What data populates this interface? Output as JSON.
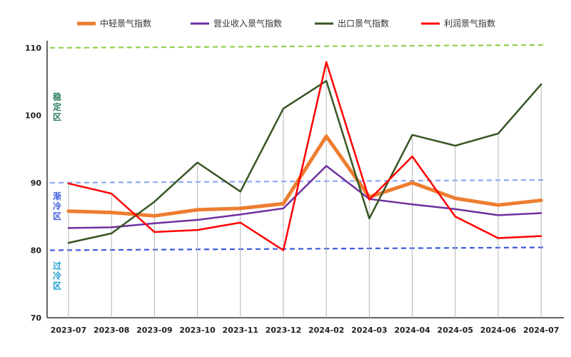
{
  "chart_data": {
    "type": "line",
    "categories": [
      "2023-07",
      "2023-08",
      "2023-09",
      "2023-10",
      "2023-11",
      "2023-12",
      "2024-02",
      "2024-03",
      "2024-04",
      "2024-05",
      "2024-06",
      "2024-07"
    ],
    "ylim": [
      70,
      110
    ],
    "yticks": [
      70,
      80,
      90,
      100,
      110
    ],
    "grid": false,
    "legend_position": "top",
    "series": [
      {
        "name": "中轻景气指数",
        "color": "#ED7D31",
        "width": 5,
        "values": [
          85.8,
          85.6,
          85.1,
          86.0,
          86.2,
          86.9,
          96.9,
          87.9,
          90.0,
          87.7,
          86.7,
          87.4
        ]
      },
      {
        "name": "营业收入景气指数",
        "color": "#7030A0",
        "width": 2.5,
        "values": [
          83.3,
          83.4,
          84.0,
          84.5,
          85.3,
          86.2,
          92.5,
          87.6,
          86.8,
          86.1,
          85.2,
          85.5
        ]
      },
      {
        "name": "出口景气指数",
        "color": "#375623",
        "width": 2.5,
        "values": [
          81.1,
          82.5,
          87.2,
          93.0,
          88.7,
          101.0,
          105.1,
          84.7,
          97.1,
          95.5,
          97.3,
          104.6
        ]
      },
      {
        "name": "利润景气指数",
        "color": "#FF0000",
        "width": 2.5,
        "values": [
          89.9,
          88.4,
          82.7,
          83.0,
          84.1,
          80.0,
          107.9,
          87.5,
          93.9,
          85.0,
          81.8,
          82.1
        ]
      }
    ],
    "reference_lines": [
      {
        "value": 110,
        "color": "#92D050"
      },
      {
        "value": 90,
        "color": "#8EA9F5"
      },
      {
        "value": 80,
        "color": "#3B5BDB"
      }
    ],
    "zones": [
      {
        "text": "稳定区",
        "color": "#2E7D5B",
        "y_center": 101.2
      },
      {
        "text": "渐冷区",
        "color": "#3B5BDB",
        "y_center": 86.5
      },
      {
        "text": "过冷区",
        "color": "#1E9FD0",
        "y_center": 76.2
      }
    ]
  }
}
